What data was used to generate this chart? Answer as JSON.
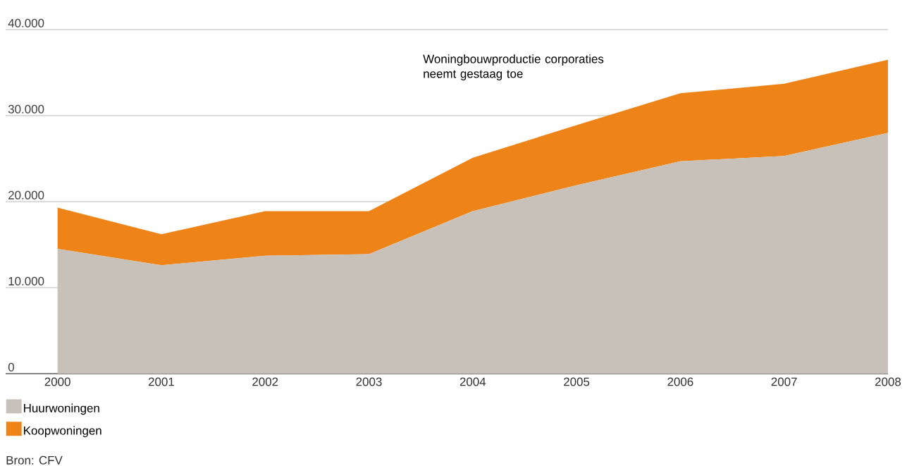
{
  "chart_data": {
    "type": "area",
    "stacked": true,
    "grid": "y",
    "legend": "bottom left",
    "x": [
      2000,
      2001,
      2002,
      2003,
      2004,
      2005,
      2006,
      2007,
      2008
    ],
    "xlim": [
      1999.5,
      2008
    ],
    "xticks": [
      2000,
      2001,
      2002,
      2003,
      2004,
      2005,
      2006,
      2007,
      2008
    ],
    "ylim": [
      0,
      40000
    ],
    "yticks": [
      {
        "value": 0,
        "label": "0"
      },
      {
        "value": 10000,
        "label": "10.000"
      },
      {
        "value": 20000,
        "label": "20.000"
      },
      {
        "value": 30000,
        "label": "30.000"
      },
      {
        "value": 40000,
        "label": "40.000"
      }
    ],
    "series": [
      {
        "name": "Huurwoningen",
        "color": "#c8c1ba",
        "values": [
          14500,
          12600,
          13700,
          13900,
          18900,
          21900,
          24700,
          25300,
          28000
        ]
      },
      {
        "name": "Koopwoningen",
        "color": "#ee8418",
        "values": [
          4800,
          3600,
          5200,
          5000,
          6200,
          7000,
          7900,
          8400,
          8500
        ]
      }
    ],
    "annotations": [
      "Woningbouwproductie corporaties neemt gestaag toe",
      "Bron: CFV"
    ]
  }
}
